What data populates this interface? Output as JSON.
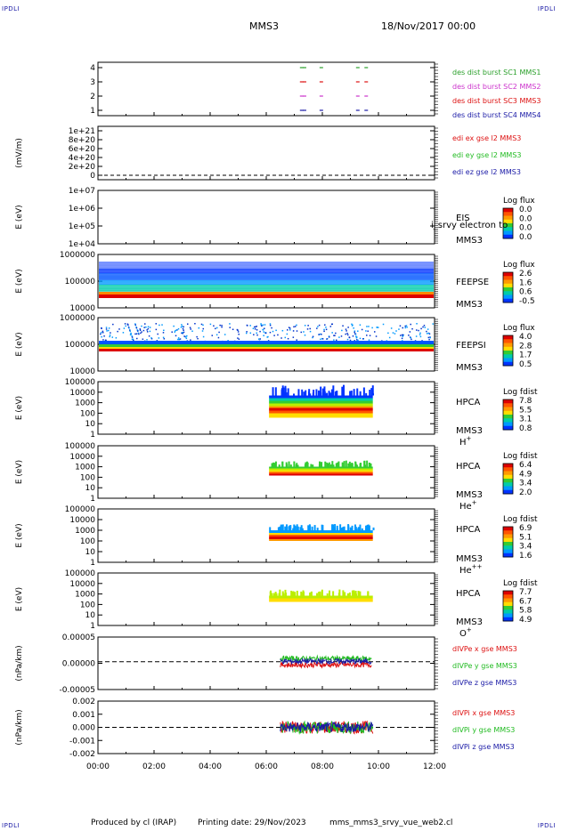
{
  "corners": {
    "top_left": "IPDLI",
    "top_right": "IPDLI",
    "bottom_left": "IPDLI",
    "bottom_right": "IPDLI"
  },
  "header": {
    "spacecraft": "MMS3",
    "date": "18/Nov/2017 00:00"
  },
  "footer": {
    "credit": "Produced by cl (IRAP)",
    "print_date": "Printing date: 29/Nov/2023",
    "filename": "mms_mms3_srvy_vue_web2.cl"
  },
  "chart_data": [
    {
      "id": "p1",
      "type": "scatter",
      "ylabel": "",
      "yticks": [
        "4",
        "3",
        "2",
        "1"
      ],
      "xlim": [
        0,
        12
      ],
      "xticks": [
        "00:00",
        "02:00",
        "04:00",
        "06:00",
        "08:00",
        "10:00",
        "12:00"
      ],
      "series": [
        {
          "name": "des dist burst SC1 MMS1",
          "color": "#2ca02c",
          "level": 4,
          "x": [
            7.2,
            7.3,
            7.9,
            9.2,
            9.5
          ]
        },
        {
          "name": "des dist burst SC2 MMS2",
          "color": "#cc33cc",
          "level": 2,
          "x": [
            7.2,
            7.3,
            7.9,
            9.2,
            9.5
          ]
        },
        {
          "name": "des dist burst SC3 MMS3",
          "color": "#dd1111",
          "level": 3,
          "x": [
            7.2,
            7.3,
            7.9,
            9.2,
            9.5
          ]
        },
        {
          "name": "des dist burst SC4 MMS4",
          "color": "#1a1aa6",
          "level": 1,
          "x": [
            7.2,
            7.3,
            7.9,
            9.2,
            9.5
          ]
        }
      ]
    },
    {
      "id": "p2",
      "type": "line",
      "ylabel": "(mV/m)",
      "yticks": [
        "1e+21",
        "8e+20",
        "6e+20",
        "4e+20",
        "2e+20",
        "0"
      ],
      "series": [
        {
          "name": "edi ex gse l2 MMS3",
          "color": "#dd1111"
        },
        {
          "name": "edi ey gse l2 MMS3",
          "color": "#22bb22"
        },
        {
          "name": "edi ez gse l2 MMS3",
          "color": "#1a1aa6"
        }
      ]
    },
    {
      "id": "p3",
      "type": "heatmap",
      "ylabel": "E (eV)",
      "yticks": [
        "1e+07",
        "1e+06",
        "1e+05",
        "1e+04"
      ],
      "instrument": "EIS",
      "spacecraft": "MMS3",
      "overlap_text": "i_srvy electron to",
      "colorbar": {
        "title": "Log flux",
        "ticks": [
          "0.0",
          "0.0",
          "0.0",
          "0.0"
        ]
      }
    },
    {
      "id": "p4",
      "type": "heatmap",
      "ylabel": "E (eV)",
      "yticks": [
        "1000000",
        "100000",
        "10000"
      ],
      "instrument": "FEEPSE",
      "spacecraft": "MMS3",
      "colorbar": {
        "title": "Log flux",
        "ticks": [
          "2.6",
          "1.6",
          "0.6",
          "-0.5"
        ]
      }
    },
    {
      "id": "p5",
      "type": "heatmap",
      "ylabel": "E (eV)",
      "yticks": [
        "1000000",
        "100000",
        "10000"
      ],
      "instrument": "FEEPSI",
      "spacecraft": "MMS3",
      "colorbar": {
        "title": "Log flux",
        "ticks": [
          "4.0",
          "2.8",
          "1.7",
          "0.5"
        ]
      }
    },
    {
      "id": "p6",
      "type": "heatmap",
      "ylabel": "E (eV)",
      "yticks": [
        "100000",
        "10000",
        "1000",
        "100",
        "10",
        "1"
      ],
      "instrument": "HPCA",
      "spacecraft": "MMS3",
      "species": "H",
      "charge": "+",
      "time_range": [
        6.1,
        9.8
      ],
      "colorbar": {
        "title": "Log fdist",
        "ticks": [
          "7.8",
          "5.5",
          "3.1",
          "0.8"
        ]
      }
    },
    {
      "id": "p7",
      "type": "heatmap",
      "ylabel": "E (eV)",
      "yticks": [
        "100000",
        "10000",
        "1000",
        "100",
        "10",
        "1"
      ],
      "instrument": "HPCA",
      "spacecraft": "MMS3",
      "species": "He",
      "charge": "+",
      "time_range": [
        6.1,
        9.8
      ],
      "colorbar": {
        "title": "Log fdist",
        "ticks": [
          "6.4",
          "4.9",
          "3.4",
          "2.0"
        ]
      }
    },
    {
      "id": "p8",
      "type": "heatmap",
      "ylabel": "E (eV)",
      "yticks": [
        "100000",
        "10000",
        "1000",
        "100",
        "10",
        "1"
      ],
      "instrument": "HPCA",
      "spacecraft": "MMS3",
      "species": "He",
      "charge": "++",
      "time_range": [
        6.1,
        9.8
      ],
      "colorbar": {
        "title": "Log fdist",
        "ticks": [
          "6.9",
          "5.1",
          "3.4",
          "1.6"
        ]
      }
    },
    {
      "id": "p9",
      "type": "heatmap",
      "ylabel": "E (eV)",
      "yticks": [
        "100000",
        "10000",
        "1000",
        "100",
        "10",
        "1"
      ],
      "instrument": "HPCA",
      "spacecraft": "MMS3",
      "species": "O",
      "charge": "+",
      "time_range": [
        6.1,
        9.8
      ],
      "colorbar": {
        "title": "Log fdist",
        "ticks": [
          "7.7",
          "6.7",
          "5.8",
          "4.9"
        ]
      }
    },
    {
      "id": "p10",
      "type": "line",
      "ylabel": "(nPa/km)",
      "yticks": [
        "0.00005",
        "0.00000",
        "-0.00005"
      ],
      "ylim": [
        -9e-05,
        8e-05
      ],
      "time_range": [
        6.5,
        9.75
      ],
      "series": [
        {
          "name": "dIVPe x gse MMS3",
          "color": "#dd1111",
          "mean": -1e-05
        },
        {
          "name": "dIVPe y gse MMS3",
          "color": "#22bb22",
          "mean": 1e-05
        },
        {
          "name": "dIVPe z gse MMS3",
          "color": "#1a1aa6",
          "mean": 1.5e-06
        }
      ]
    },
    {
      "id": "p11",
      "type": "line",
      "ylabel": "(nPa/km)",
      "yticks": [
        "0.002",
        "0.001",
        "0.000",
        "-0.001",
        "-0.002"
      ],
      "ylim": [
        -0.0026,
        0.0026
      ],
      "time_range": [
        6.5,
        9.8
      ],
      "series": [
        {
          "name": "dIVPi x gse MMS3",
          "color": "#dd1111",
          "mean": 0
        },
        {
          "name": "dIVPi y gse MMS3",
          "color": "#22bb22",
          "mean": 0
        },
        {
          "name": "dIVPi z gse MMS3",
          "color": "#1a1aa6",
          "mean": 0
        }
      ]
    }
  ]
}
